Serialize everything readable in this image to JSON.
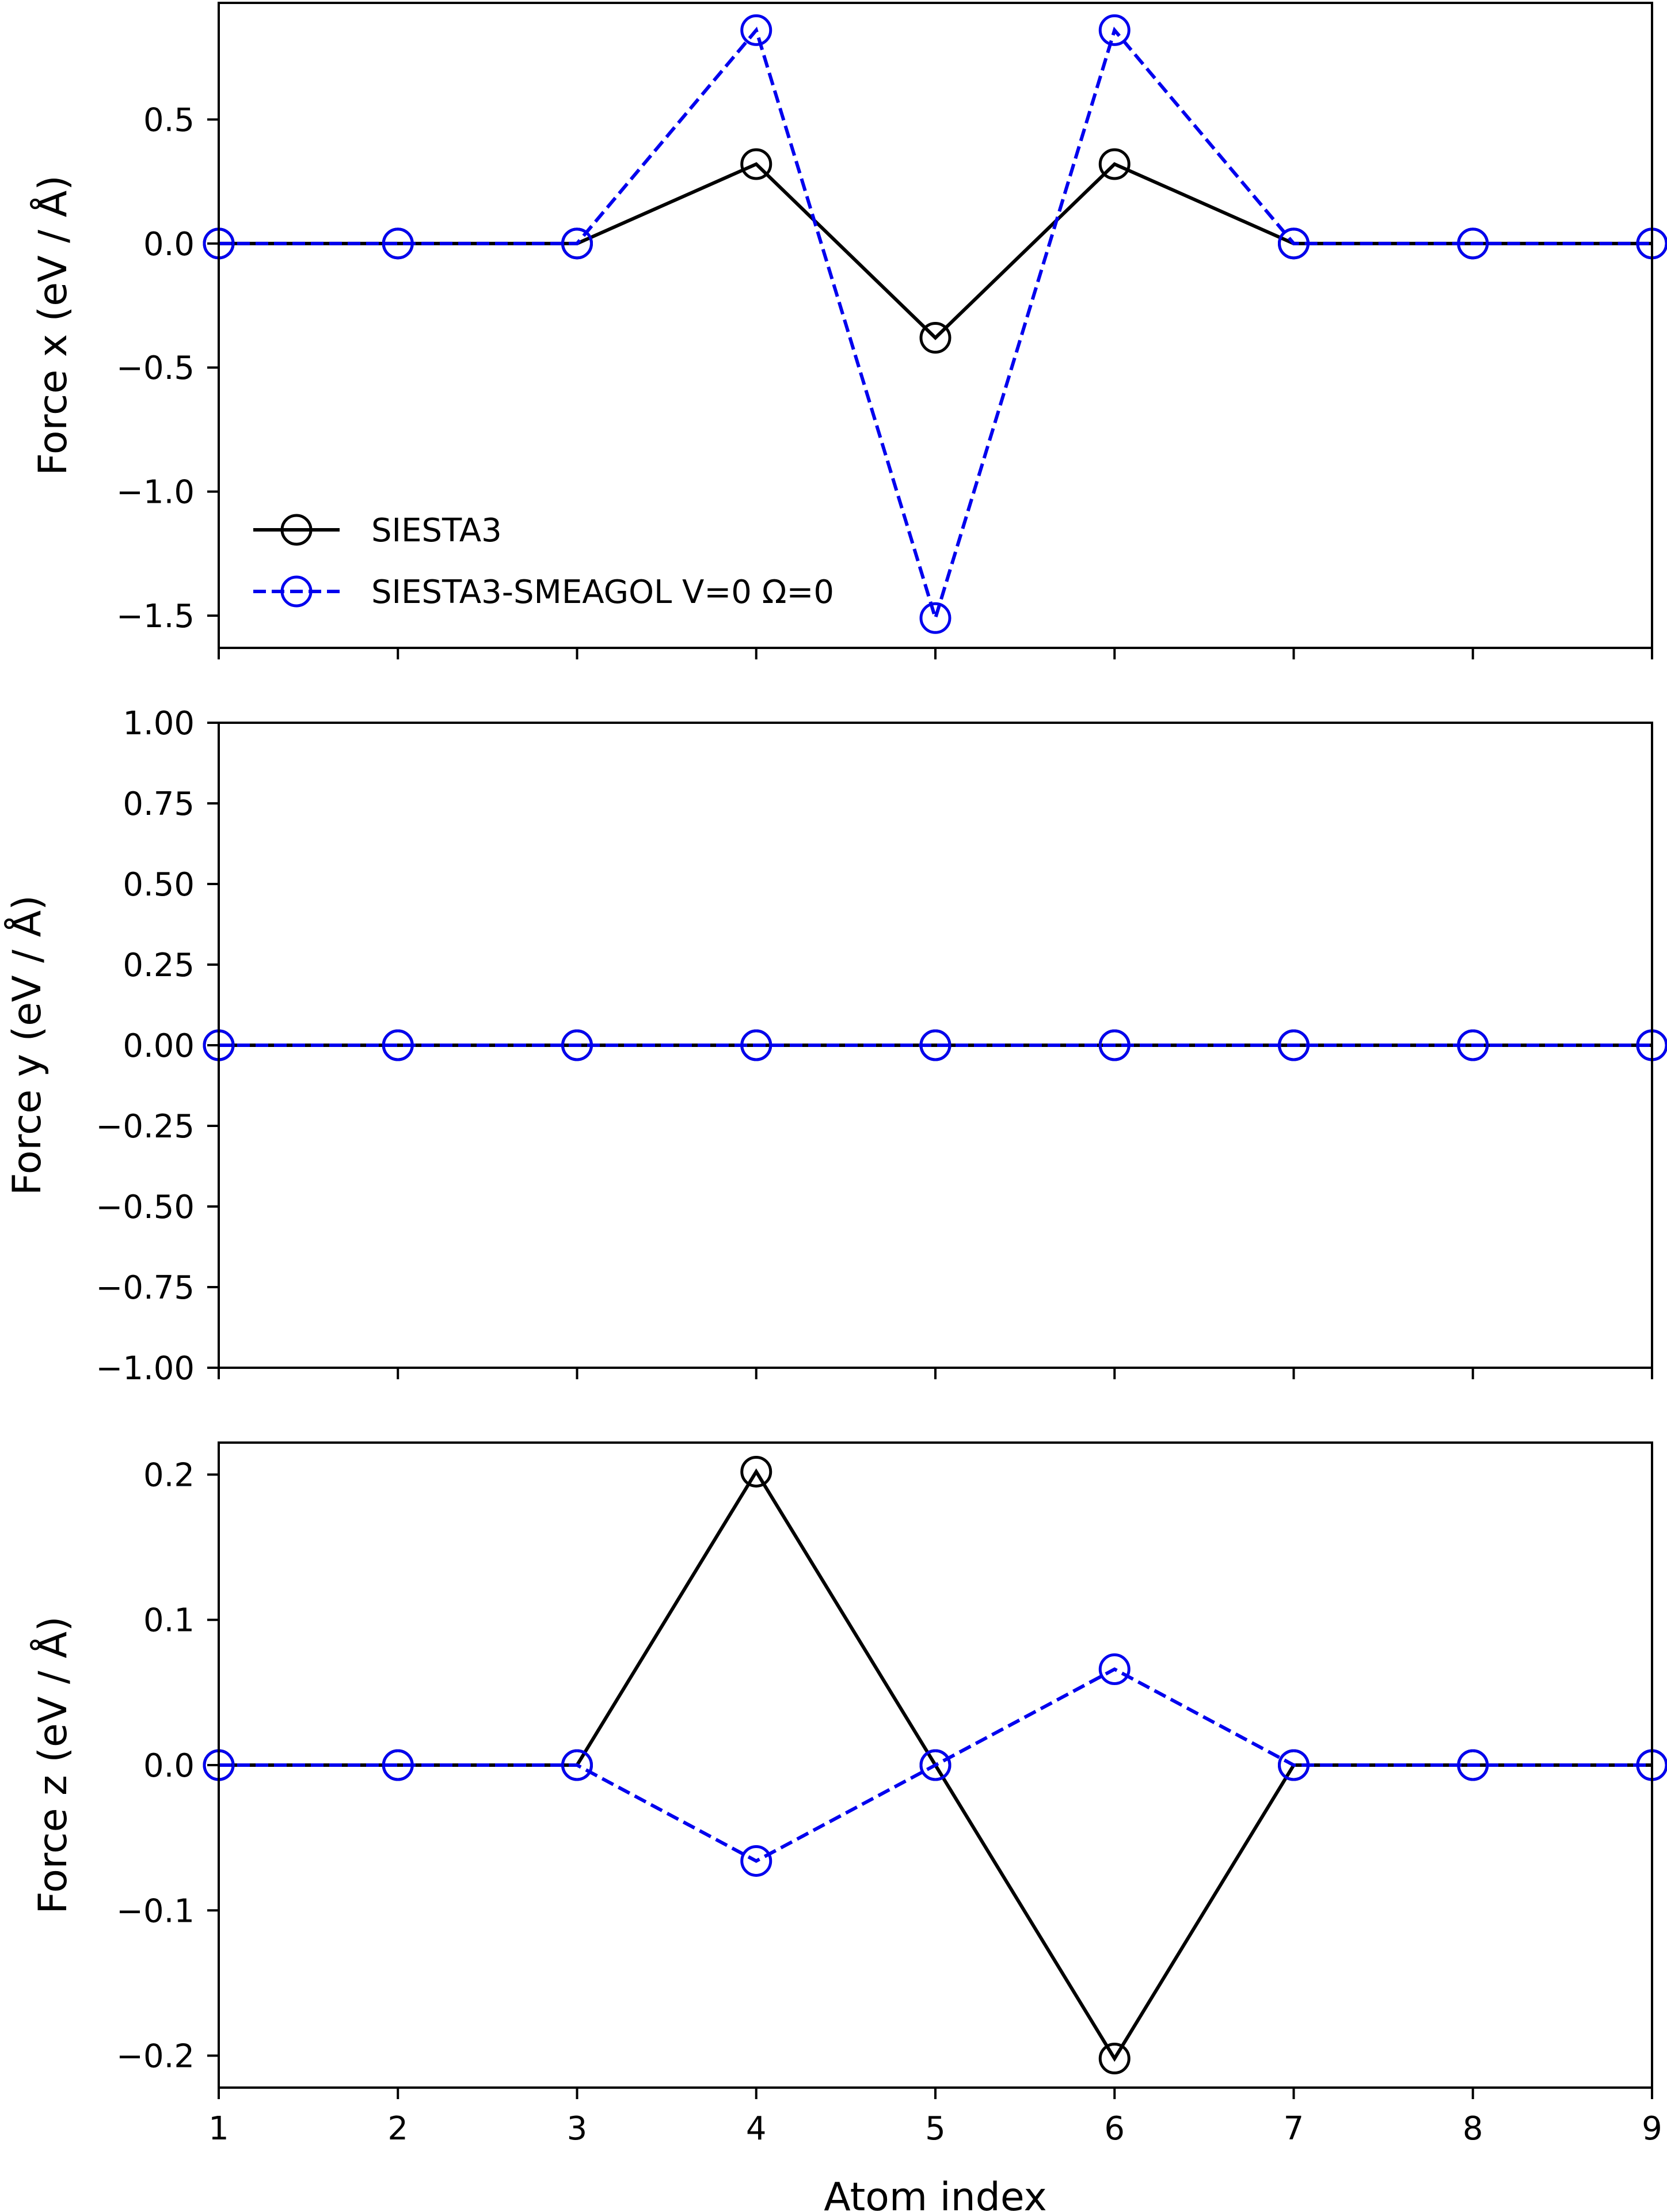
{
  "chart_data": [
    {
      "type": "line",
      "ylabel": "Force x (eV / Å)",
      "xlabel": "",
      "xlim": [
        1,
        9
      ],
      "ylim": [
        -1.63,
        0.97
      ],
      "x_ticks": [
        1,
        2,
        3,
        4,
        5,
        6,
        7,
        8,
        9
      ],
      "y_ticks": [
        {
          "value": 0.5,
          "label": "0.5"
        },
        {
          "value": 0.0,
          "label": "0.0"
        },
        {
          "value": -0.5,
          "label": "−0.5"
        },
        {
          "value": -1.0,
          "label": "−1.0"
        },
        {
          "value": -1.5,
          "label": "−1.5"
        }
      ],
      "legend": {
        "placement": "lower-left"
      },
      "series": [
        {
          "name": "SIESTA3",
          "color": "#000000",
          "style": "solid",
          "marker": "open-circle",
          "x": [
            1,
            2,
            3,
            4,
            5,
            6,
            7,
            8,
            9
          ],
          "values": [
            0.0,
            0.0,
            0.0,
            0.32,
            -0.38,
            0.32,
            0.0,
            0.0,
            0.0
          ]
        },
        {
          "name": "SIESTA3-SMEAGOL V=0 Ω=0",
          "color": "#0000ee",
          "style": "dashed",
          "marker": "open-circle",
          "x": [
            1,
            2,
            3,
            4,
            5,
            6,
            7,
            8,
            9
          ],
          "values": [
            0.0,
            0.0,
            0.0,
            0.86,
            -1.51,
            0.86,
            0.0,
            0.0,
            0.0
          ]
        }
      ]
    },
    {
      "type": "line",
      "ylabel": "Force y (eV / Å)",
      "xlabel": "",
      "xlim": [
        1,
        9
      ],
      "ylim": [
        -1.0,
        1.0
      ],
      "x_ticks": [
        1,
        2,
        3,
        4,
        5,
        6,
        7,
        8,
        9
      ],
      "y_ticks": [
        {
          "value": 1.0,
          "label": "1.00"
        },
        {
          "value": 0.75,
          "label": "0.75"
        },
        {
          "value": 0.5,
          "label": "0.50"
        },
        {
          "value": 0.25,
          "label": "0.25"
        },
        {
          "value": 0.0,
          "label": "0.00"
        },
        {
          "value": -0.25,
          "label": "−0.25"
        },
        {
          "value": -0.5,
          "label": "−0.50"
        },
        {
          "value": -0.75,
          "label": "−0.75"
        },
        {
          "value": -1.0,
          "label": "−1.00"
        }
      ],
      "series": [
        {
          "color": "#000000",
          "style": "solid",
          "marker": "open-circle",
          "x": [
            1,
            2,
            3,
            4,
            5,
            6,
            7,
            8,
            9
          ],
          "values": [
            0,
            0,
            0,
            0,
            0,
            0,
            0,
            0,
            0
          ]
        },
        {
          "color": "#0000ee",
          "style": "dashed",
          "marker": "open-circle",
          "x": [
            1,
            2,
            3,
            4,
            5,
            6,
            7,
            8,
            9
          ],
          "values": [
            0,
            0,
            0,
            0,
            0,
            0,
            0,
            0,
            0
          ]
        }
      ]
    },
    {
      "type": "line",
      "ylabel": "Force z (eV / Å)",
      "xlabel": "Atom index",
      "xlim": [
        1,
        9
      ],
      "ylim": [
        -0.222,
        0.222
      ],
      "x_ticks": [
        1,
        2,
        3,
        4,
        5,
        6,
        7,
        8,
        9
      ],
      "show_x_tick_labels": true,
      "y_ticks": [
        {
          "value": 0.2,
          "label": "0.2"
        },
        {
          "value": 0.1,
          "label": "0.1"
        },
        {
          "value": 0.0,
          "label": "0.0"
        },
        {
          "value": -0.1,
          "label": "−0.1"
        },
        {
          "value": -0.2,
          "label": "−0.2"
        }
      ],
      "series": [
        {
          "color": "#000000",
          "style": "solid",
          "marker": "open-circle",
          "x": [
            1,
            2,
            3,
            4,
            5,
            6,
            7,
            8,
            9
          ],
          "values": [
            0.0,
            0.0,
            0.0,
            0.202,
            0.0,
            -0.202,
            0.0,
            0.0,
            0.0
          ]
        },
        {
          "color": "#0000ee",
          "style": "dashed",
          "marker": "open-circle",
          "x": [
            1,
            2,
            3,
            4,
            5,
            6,
            7,
            8,
            9
          ],
          "values": [
            0.0,
            0.0,
            0.0,
            -0.066,
            0.0,
            0.066,
            0.0,
            0.0,
            0.0
          ]
        }
      ]
    }
  ]
}
